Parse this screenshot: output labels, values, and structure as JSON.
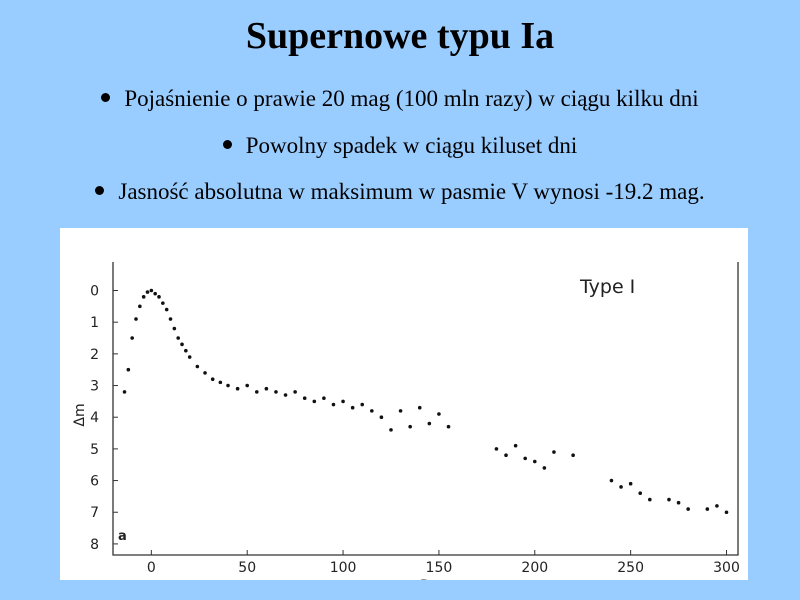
{
  "header": {
    "title": "Supernowe typu Ia"
  },
  "bullets": [
    "Pojaśnienie o prawie 20 mag (100 mln razy) w ciągu kilku dni",
    "Powolny spadek w ciągu kiluset dni",
    "Jasność absolutna w maksimum w pasmie V wynosi -19.2 mag."
  ],
  "chart_data": {
    "type": "scatter",
    "annotations": [
      "Type I",
      "a"
    ],
    "x_label": "Days",
    "y_label": "Δm",
    "color": "#111111",
    "xlim": [
      -20,
      306
    ],
    "ylim": [
      -0.9,
      8.35
    ],
    "y_inverted": true,
    "xticks": [
      0,
      50,
      100,
      150,
      200,
      250,
      300
    ],
    "yticks": [
      0,
      1,
      2,
      3,
      4,
      5,
      6,
      7,
      8
    ],
    "x": [
      -14,
      -12,
      -10,
      -8,
      -6,
      -4,
      -2,
      0,
      2,
      4,
      6,
      8,
      10,
      12,
      14,
      16,
      18,
      20,
      24,
      28,
      32,
      36,
      40,
      45,
      50,
      55,
      60,
      65,
      70,
      75,
      80,
      85,
      90,
      95,
      100,
      105,
      110,
      115,
      120,
      125,
      130,
      135,
      140,
      145,
      150,
      155,
      180,
      185,
      190,
      195,
      200,
      205,
      210,
      220,
      240,
      245,
      250,
      255,
      260,
      270,
      275,
      280,
      290,
      295,
      300
    ],
    "values": [
      3.2,
      2.5,
      1.5,
      0.9,
      0.5,
      0.2,
      0.05,
      0.0,
      0.1,
      0.2,
      0.4,
      0.6,
      0.9,
      1.2,
      1.5,
      1.7,
      1.9,
      2.1,
      2.4,
      2.6,
      2.8,
      2.9,
      3.0,
      3.1,
      3.0,
      3.2,
      3.1,
      3.2,
      3.3,
      3.2,
      3.4,
      3.5,
      3.4,
      3.6,
      3.5,
      3.7,
      3.6,
      3.8,
      4.0,
      4.4,
      3.8,
      4.3,
      3.7,
      4.2,
      3.9,
      4.3,
      5.0,
      5.2,
      4.9,
      5.3,
      5.4,
      5.6,
      5.1,
      5.2,
      6.0,
      6.2,
      6.1,
      6.4,
      6.6,
      6.6,
      6.7,
      6.9,
      6.9,
      6.8,
      7.0
    ]
  }
}
